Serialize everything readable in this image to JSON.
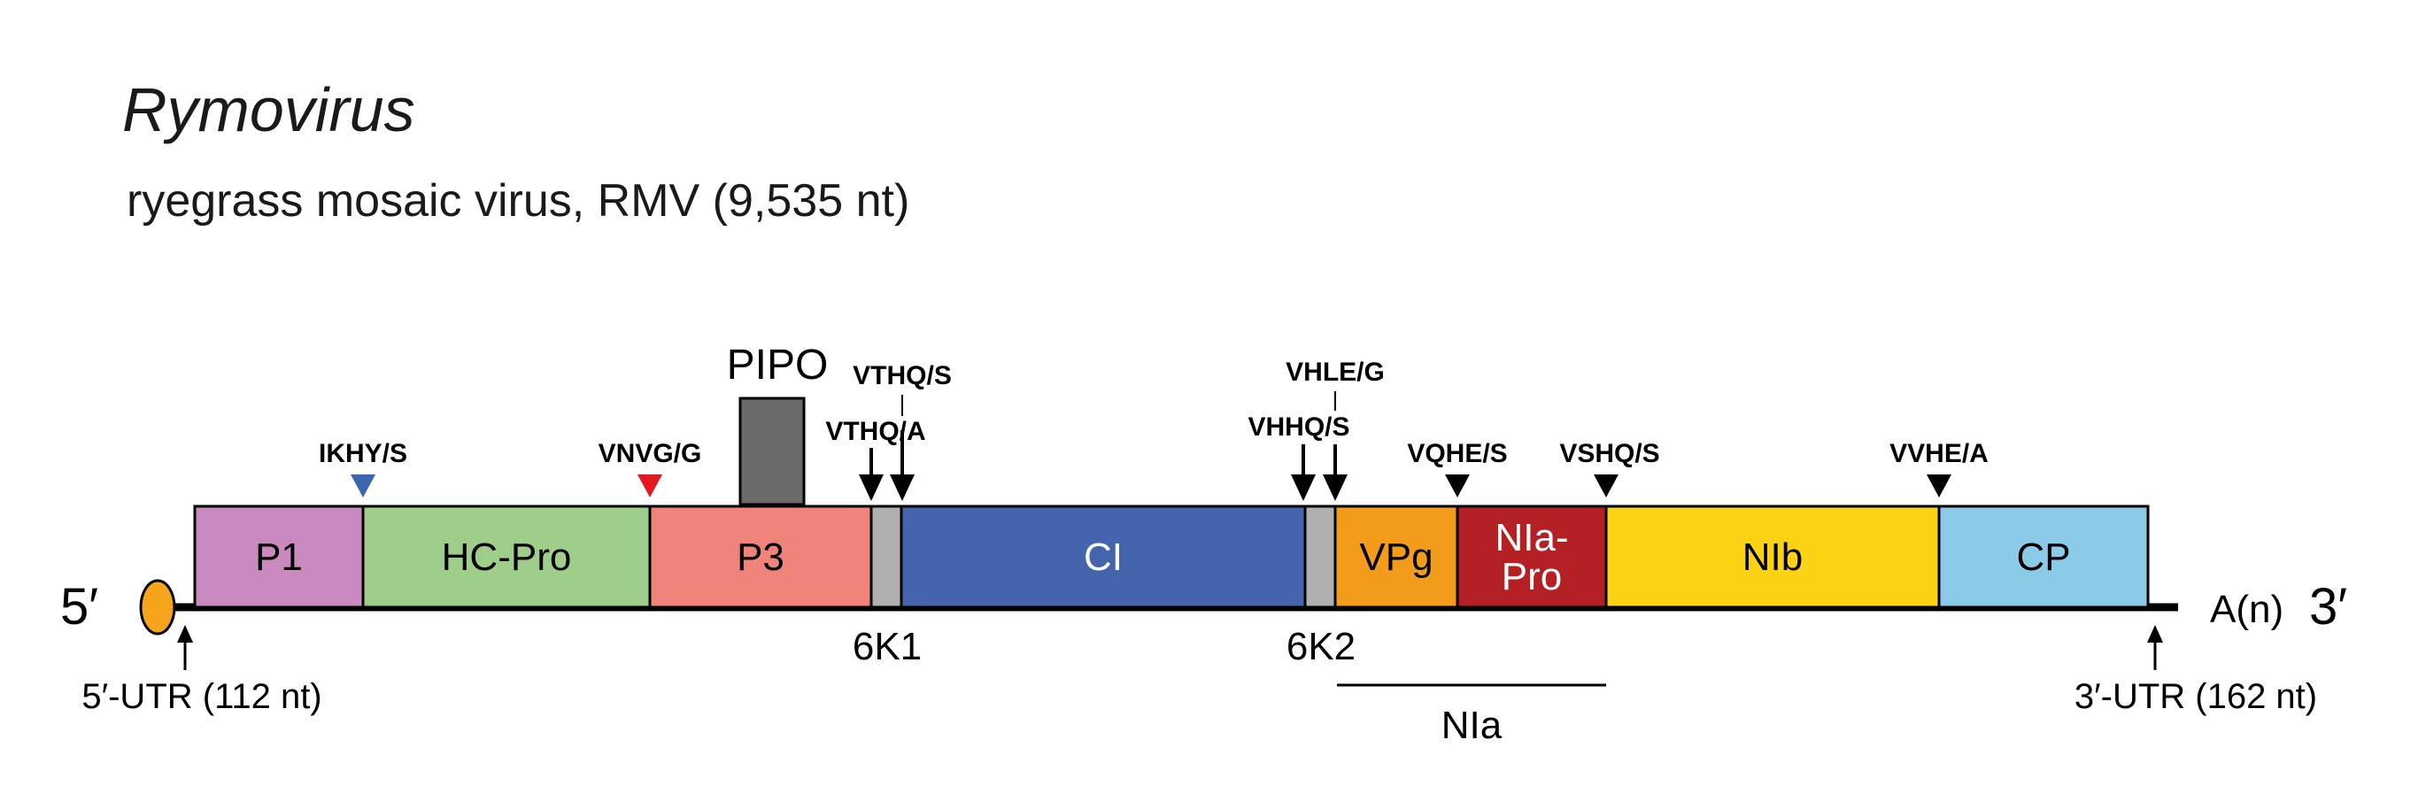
{
  "title": "Rymovirus",
  "subtitle": "ryegrass mosaic virus, RMV (9,535 nt)",
  "five_prime": "5′",
  "three_prime": "3′",
  "polyA": "A(n)",
  "utr5": "5′-UTR (112 nt)",
  "utr3": "3′-UTR (162 nt)",
  "pipo": "PIPO",
  "nia_bracket": "NIa",
  "colors": {
    "P1": "#c98bbf",
    "HC-Pro": "#9fce8a",
    "P3": "#f0847a",
    "6K": "#b0b0b0",
    "CI": "#4464ad",
    "VPg": "#f39c1c",
    "NIa-Pro": "#b52025",
    "NIb": "#fcd214",
    "CP": "#8ccbe8",
    "PIPO": "#6a6a6a",
    "cap": "#f5a41c",
    "triangle_blue": "#3c67b0",
    "triangle_red": "#e3181f"
  },
  "segments": [
    {
      "id": "P1",
      "lines": [
        "P1"
      ]
    },
    {
      "id": "HC-Pro",
      "lines": [
        "HC-Pro"
      ]
    },
    {
      "id": "P3",
      "lines": [
        "P3"
      ]
    },
    {
      "id": "6K1",
      "lines": []
    },
    {
      "id": "CI",
      "lines": [
        "CI"
      ]
    },
    {
      "id": "6K2",
      "lines": []
    },
    {
      "id": "VPg",
      "lines": [
        "VPg"
      ]
    },
    {
      "id": "NIa-Pro",
      "lines": [
        "NIa-",
        "Pro"
      ]
    },
    {
      "id": "NIb",
      "lines": [
        "NIb"
      ]
    },
    {
      "id": "CP",
      "lines": [
        "CP"
      ]
    }
  ],
  "below_labels": [
    "6K1",
    "6K2"
  ],
  "cleavage_sites": [
    {
      "label": "IKHY/S",
      "marker": "triangle",
      "color": "blue"
    },
    {
      "label": "VNVG/G",
      "marker": "triangle",
      "color": "red"
    },
    {
      "label": "VTHQ/A",
      "marker": "arrow"
    },
    {
      "label": "VTHQ/S",
      "marker": "arrow"
    },
    {
      "label": "VHHQ/S",
      "marker": "arrow"
    },
    {
      "label": "VHLE/G",
      "marker": "arrow"
    },
    {
      "label": "VQHE/S",
      "marker": "triangle",
      "color": "black"
    },
    {
      "label": "VSHQ/S",
      "marker": "triangle",
      "color": "black"
    },
    {
      "label": "VVHE/A",
      "marker": "triangle",
      "color": "black"
    }
  ]
}
